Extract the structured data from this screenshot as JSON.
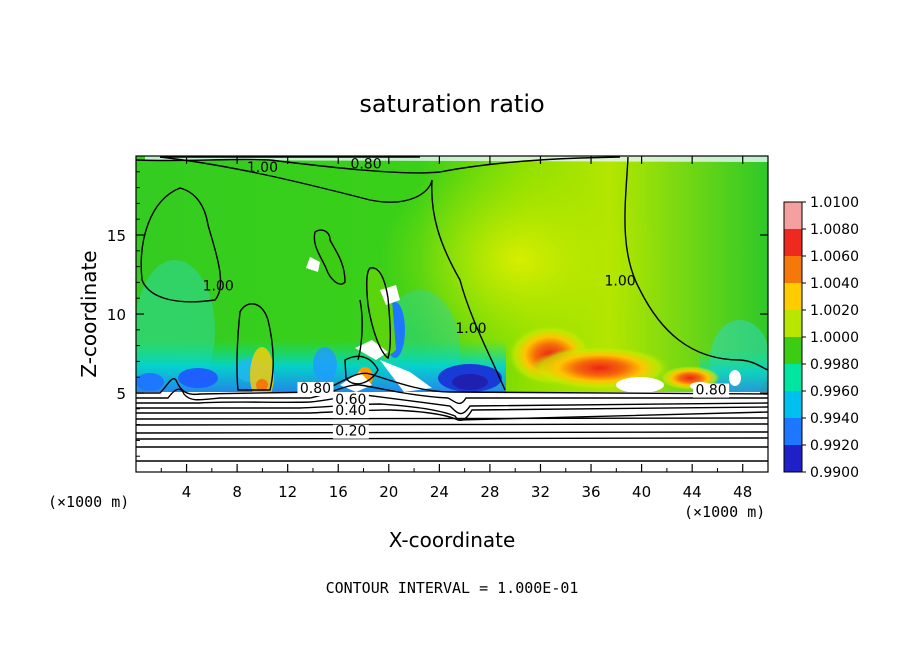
{
  "chart_data": {
    "type": "heatmap",
    "title": "saturation ratio",
    "xlabel": "X-coordinate",
    "ylabel": "Z-coordinate",
    "x_unit_left": "(×1000 m)",
    "x_unit_right": "(×1000 m)",
    "footer": "CONTOUR INTERVAL = 1.000E-01",
    "xlim": [
      0,
      50
    ],
    "ylim": [
      0,
      20
    ],
    "x_ticks": [
      4,
      8,
      12,
      16,
      20,
      24,
      28,
      32,
      36,
      40,
      44,
      48
    ],
    "y_ticks": [
      5,
      10,
      15
    ],
    "colorbar": {
      "labels": [
        "1.0100",
        "1.0080",
        "1.0060",
        "1.0040",
        "1.0020",
        "1.0000",
        "0.9980",
        "0.9960",
        "0.9940",
        "0.9920",
        "0.9900"
      ],
      "colors": [
        "#f4a0a0",
        "#ee2a20",
        "#f5780a",
        "#ffcc00",
        "#b8e600",
        "#3ccc14",
        "#00e6a0",
        "#00c0f0",
        "#1e78ff",
        "#2020c8",
        "#7a18a0"
      ]
    },
    "contour_labels": [
      {
        "text": "1.00",
        "x": 10.0,
        "y": 19.0
      },
      {
        "text": "0.80",
        "x": 18.2,
        "y": 19.2
      },
      {
        "text": "1.00",
        "x": 6.5,
        "y": 11.5
      },
      {
        "text": "1.00",
        "x": 26.5,
        "y": 8.8
      },
      {
        "text": "1.00",
        "x": 38.3,
        "y": 11.8
      },
      {
        "text": "0.80",
        "x": 14.2,
        "y": 5.0
      },
      {
        "text": "0.60",
        "x": 17.0,
        "y": 4.3
      },
      {
        "text": "0.40",
        "x": 17.0,
        "y": 3.6
      },
      {
        "text": "0.20",
        "x": 17.0,
        "y": 2.3
      },
      {
        "text": "0.80",
        "x": 45.5,
        "y": 4.9
      }
    ]
  }
}
